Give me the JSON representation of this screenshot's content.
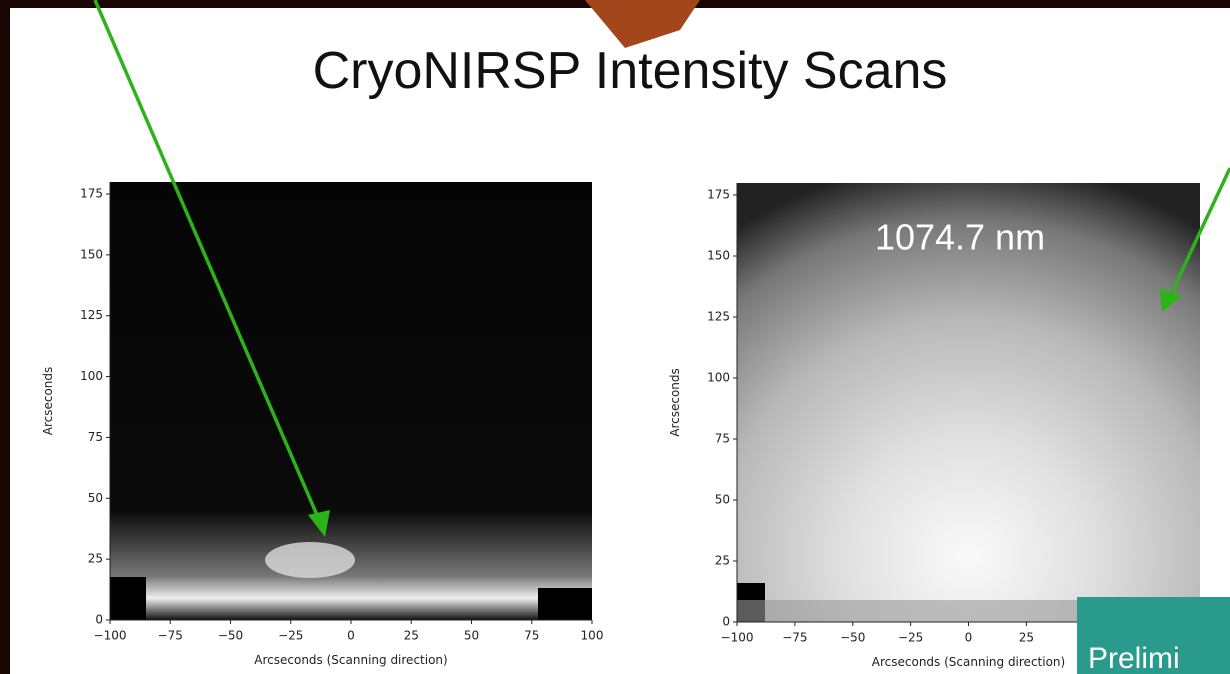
{
  "slide": {
    "title": "CryoNIRSP Intensity Scans",
    "panels": [
      {
        "yticks": [
          "0",
          "25",
          "50",
          "75",
          "100",
          "125",
          "150",
          "175"
        ],
        "xticks": [
          "−100",
          "−75",
          "−50",
          "−25",
          "0",
          "25",
          "50",
          "75",
          "100"
        ],
        "ylabel": "Arcseconds",
        "xlabel": "Arcseconds (Scanning direction)"
      },
      {
        "yticks": [
          "0",
          "25",
          "50",
          "75",
          "100",
          "125",
          "150",
          "175"
        ],
        "xticks": [
          "−100",
          "−75",
          "−50",
          "−25",
          "0",
          "25"
        ],
        "ylabel": "Arcseconds",
        "xlabel": "Arcseconds (Scanning direction)",
        "note": "1074.7 nm"
      }
    ],
    "badge": "Prelimi"
  }
}
